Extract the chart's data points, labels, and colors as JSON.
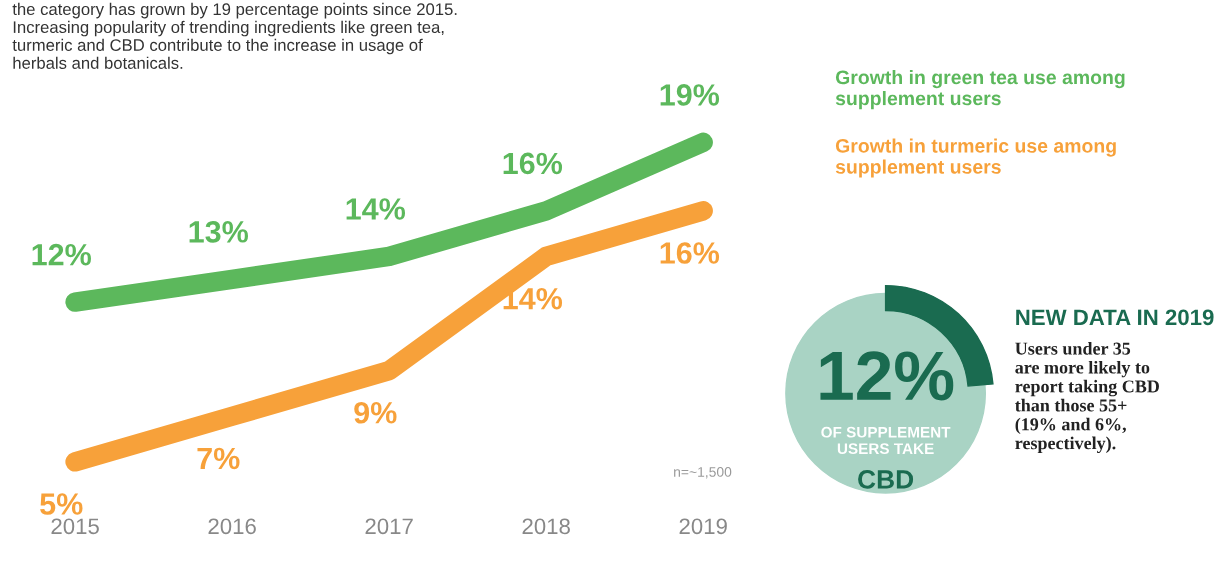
{
  "chart_data": {
    "type": "line",
    "categories": [
      "2015",
      "2016",
      "2017",
      "2018",
      "2019"
    ],
    "series": [
      {
        "name": "Growth in green tea use among supplement users",
        "color": "#5cb85c",
        "values": [
          12,
          13,
          14,
          16,
          19
        ],
        "value_labels": [
          "12%",
          "13%",
          "14%",
          "16%",
          "19%"
        ]
      },
      {
        "name": "Growth in turmeric use among supplement users",
        "color": "#f7a13a",
        "values": [
          5,
          7,
          9,
          14,
          16
        ],
        "value_labels": [
          "5%",
          "7%",
          "9%",
          "14%",
          "16%"
        ]
      }
    ],
    "tick_labels": "x",
    "grid": false,
    "legend": false,
    "marker": "none",
    "line_style": "solid",
    "annotations": [
      "the category has grown by 19 percentage points since 2015.\nIncreasing popularity of trending ingredients like green tea,\nturmeric and CBD contribute to the increase in usage of\nherbals and botanicals.",
      "n=~1,500",
      "12%",
      "OF SUPPLEMENT\nUSERS TAKE",
      "CBD",
      "NEW DATA IN 2019",
      "Users under 35\nare more likely to\nreport taking CBD\nthan those 55+\n(19% and 6%,\nrespectively)."
    ]
  }
}
